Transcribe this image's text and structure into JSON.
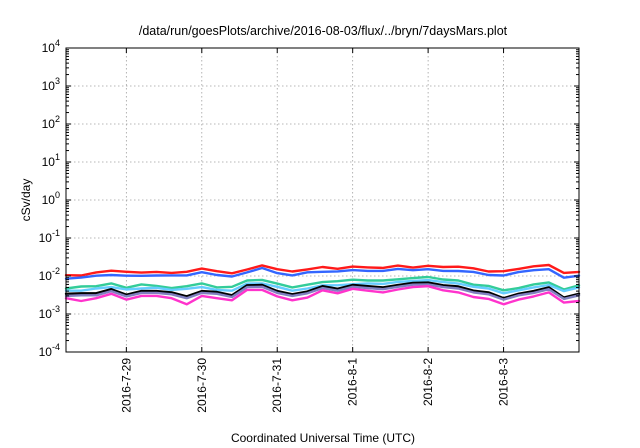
{
  "chart_data": {
    "type": "line",
    "title": "/data/run/goesPlots/archive/2016-08-03/flux/../bryn/7daysMars.plot",
    "xlabel": "Coordinated Universal Time (UTC)",
    "ylabel": "cSv/day",
    "yscale": "log",
    "ylim": [
      0.0001,
      10000
    ],
    "xlim": [
      0.2,
      7.0
    ],
    "x_unit": "days since 2016-07-28 00:00 UTC",
    "x_ticks": [
      {
        "x": 1,
        "label": "2016-7-29"
      },
      {
        "x": 2,
        "label": "2016-7-30"
      },
      {
        "x": 3,
        "label": "2016-7-31"
      },
      {
        "x": 4,
        "label": "2016-8-1"
      },
      {
        "x": 5,
        "label": "2016-8-2"
      },
      {
        "x": 6,
        "label": "2016-8-3"
      }
    ],
    "y_ticks": [
      {
        "v": 0.0001,
        "base": "10",
        "exp": "-4"
      },
      {
        "v": 0.001,
        "base": "10",
        "exp": "-3"
      },
      {
        "v": 0.01,
        "base": "10",
        "exp": "-2"
      },
      {
        "v": 0.1,
        "base": "10",
        "exp": "-1"
      },
      {
        "v": 1,
        "base": "10",
        "exp": "0"
      },
      {
        "v": 10,
        "base": "10",
        "exp": "1"
      },
      {
        "v": 100,
        "base": "10",
        "exp": "2"
      },
      {
        "v": 1000,
        "base": "10",
        "exp": "3"
      },
      {
        "v": 10000,
        "base": "10",
        "exp": "4"
      }
    ],
    "grid": true,
    "x": [
      0.2,
      0.4,
      0.6,
      0.8,
      1.0,
      1.2,
      1.4,
      1.6,
      1.8,
      2.0,
      2.2,
      2.4,
      2.6,
      2.8,
      3.0,
      3.2,
      3.4,
      3.6,
      3.8,
      4.0,
      4.2,
      4.4,
      4.6,
      4.8,
      5.0,
      5.2,
      5.4,
      5.6,
      5.8,
      6.0,
      6.2,
      6.4,
      6.6,
      6.8,
      7.0
    ],
    "series": [
      {
        "color": "#ff1a1a",
        "values": [
          0.0105,
          0.0103,
          0.0124,
          0.0138,
          0.0129,
          0.0123,
          0.0128,
          0.0121,
          0.0129,
          0.0157,
          0.0134,
          0.0118,
          0.0148,
          0.019,
          0.0151,
          0.0131,
          0.0149,
          0.0173,
          0.0155,
          0.0177,
          0.0168,
          0.0163,
          0.0188,
          0.0166,
          0.0186,
          0.0172,
          0.0176,
          0.0159,
          0.0131,
          0.0134,
          0.0154,
          0.018,
          0.0195,
          0.0121,
          0.0128
        ]
      },
      {
        "color": "#3366ff",
        "values": [
          0.0085,
          0.0091,
          0.0102,
          0.0106,
          0.0102,
          0.0101,
          0.0103,
          0.0104,
          0.0104,
          0.0126,
          0.0106,
          0.0097,
          0.0124,
          0.0162,
          0.0119,
          0.0104,
          0.0125,
          0.0129,
          0.0132,
          0.0143,
          0.0136,
          0.0136,
          0.0154,
          0.0142,
          0.0151,
          0.0136,
          0.0135,
          0.0128,
          0.0106,
          0.0103,
          0.0127,
          0.0142,
          0.0151,
          0.009,
          0.0102
        ]
      },
      {
        "color": "#33cc99",
        "values": [
          0.0047,
          0.0053,
          0.0054,
          0.0064,
          0.0049,
          0.006,
          0.0055,
          0.0048,
          0.0054,
          0.0064,
          0.005,
          0.0052,
          0.0076,
          0.0079,
          0.0063,
          0.005,
          0.0059,
          0.0069,
          0.0073,
          0.008,
          0.0076,
          0.0076,
          0.0082,
          0.0088,
          0.0094,
          0.0081,
          0.0076,
          0.0059,
          0.0055,
          0.0042,
          0.0048,
          0.006,
          0.0068,
          0.0044,
          0.0057
        ]
      },
      {
        "color": "#66ccff",
        "values": [
          0.0041,
          0.0041,
          0.0047,
          0.0051,
          0.0044,
          0.0047,
          0.0049,
          0.0043,
          0.0046,
          0.0051,
          0.0043,
          0.0041,
          0.0063,
          0.0064,
          0.0052,
          0.0041,
          0.0047,
          0.0057,
          0.0057,
          0.0061,
          0.0064,
          0.0062,
          0.007,
          0.0074,
          0.0078,
          0.0069,
          0.0063,
          0.0052,
          0.0047,
          0.0035,
          0.0042,
          0.005,
          0.0058,
          0.004,
          0.005
        ]
      },
      {
        "color": "#000000",
        "values": [
          0.0034,
          0.0035,
          0.0035,
          0.0045,
          0.0032,
          0.004,
          0.004,
          0.0037,
          0.0029,
          0.004,
          0.0038,
          0.0031,
          0.0057,
          0.0058,
          0.004,
          0.0033,
          0.0039,
          0.0054,
          0.0046,
          0.0058,
          0.0054,
          0.005,
          0.0058,
          0.0066,
          0.0067,
          0.0057,
          0.0053,
          0.0041,
          0.0037,
          0.0026,
          0.0034,
          0.004,
          0.005,
          0.0027,
          0.0034
        ]
      },
      {
        "color": "#8080c0",
        "values": [
          0.003,
          0.0031,
          0.0031,
          0.004,
          0.0029,
          0.0036,
          0.0036,
          0.0033,
          0.0026,
          0.0036,
          0.0034,
          0.0028,
          0.0051,
          0.0052,
          0.0036,
          0.003,
          0.0035,
          0.0048,
          0.0041,
          0.0052,
          0.0048,
          0.0045,
          0.0052,
          0.0059,
          0.006,
          0.0051,
          0.0047,
          0.0037,
          0.0033,
          0.0024,
          0.0031,
          0.0036,
          0.0045,
          0.0025,
          0.0031
        ]
      },
      {
        "color": "#ff33cc",
        "values": [
          0.0026,
          0.0022,
          0.0026,
          0.0034,
          0.0024,
          0.003,
          0.003,
          0.0026,
          0.0018,
          0.003,
          0.0026,
          0.0023,
          0.0043,
          0.0043,
          0.0029,
          0.0023,
          0.0027,
          0.0042,
          0.0035,
          0.0046,
          0.0041,
          0.0037,
          0.0044,
          0.0051,
          0.0054,
          0.0042,
          0.0037,
          0.0028,
          0.0025,
          0.0018,
          0.0024,
          0.0029,
          0.0037,
          0.002,
          0.0022
        ]
      }
    ]
  }
}
